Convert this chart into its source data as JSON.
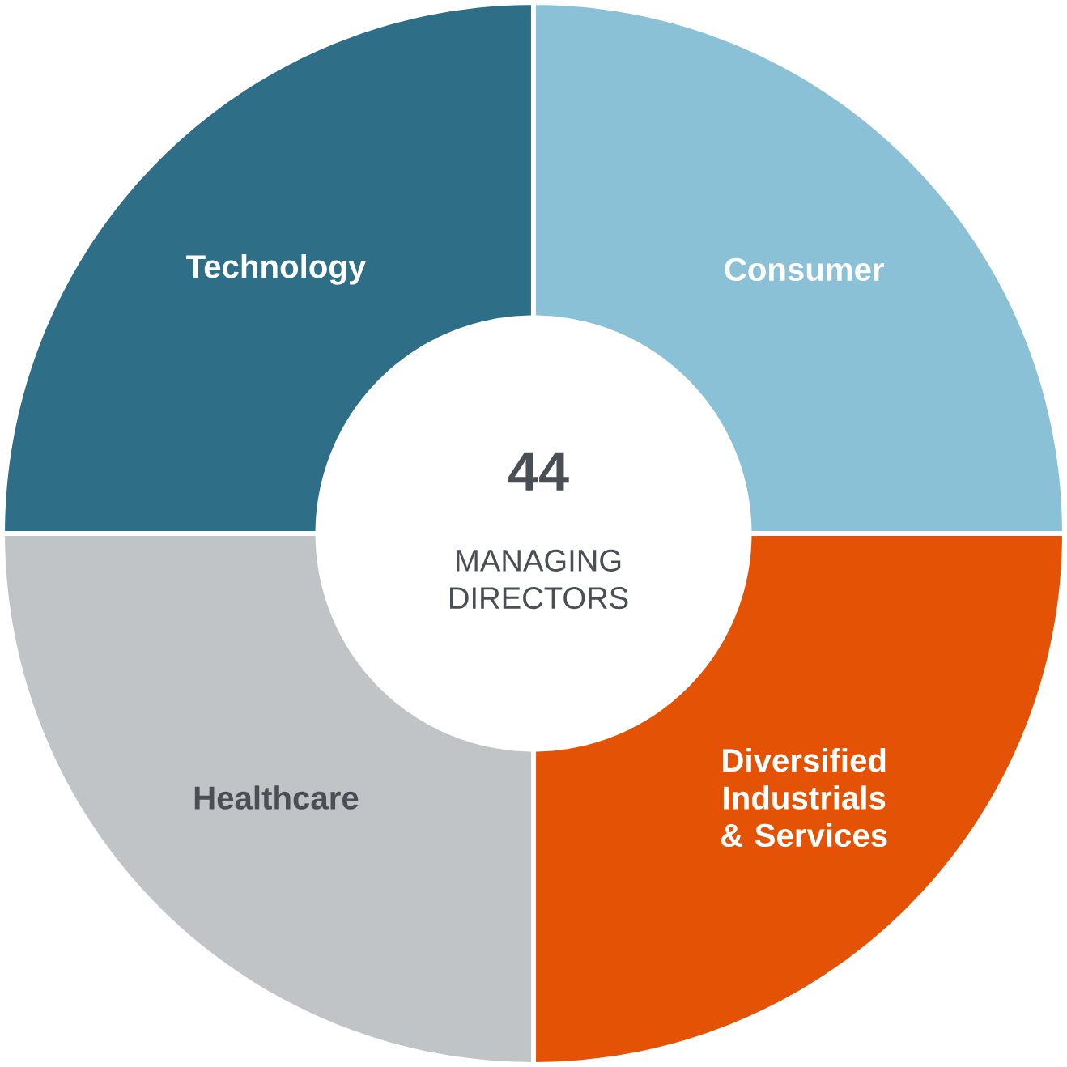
{
  "chart_data": {
    "type": "donut",
    "categories": [
      "Technology",
      "Consumer",
      "Diversified Industrials & Services",
      "Healthcare"
    ],
    "values": [
      25,
      25,
      25,
      25
    ],
    "colors": [
      "#2e6f87",
      "#8ac1d6",
      "#e35205",
      "#c1c4c6"
    ],
    "annotations": [
      "44",
      "MANAGING DIRECTORS"
    ]
  }
}
